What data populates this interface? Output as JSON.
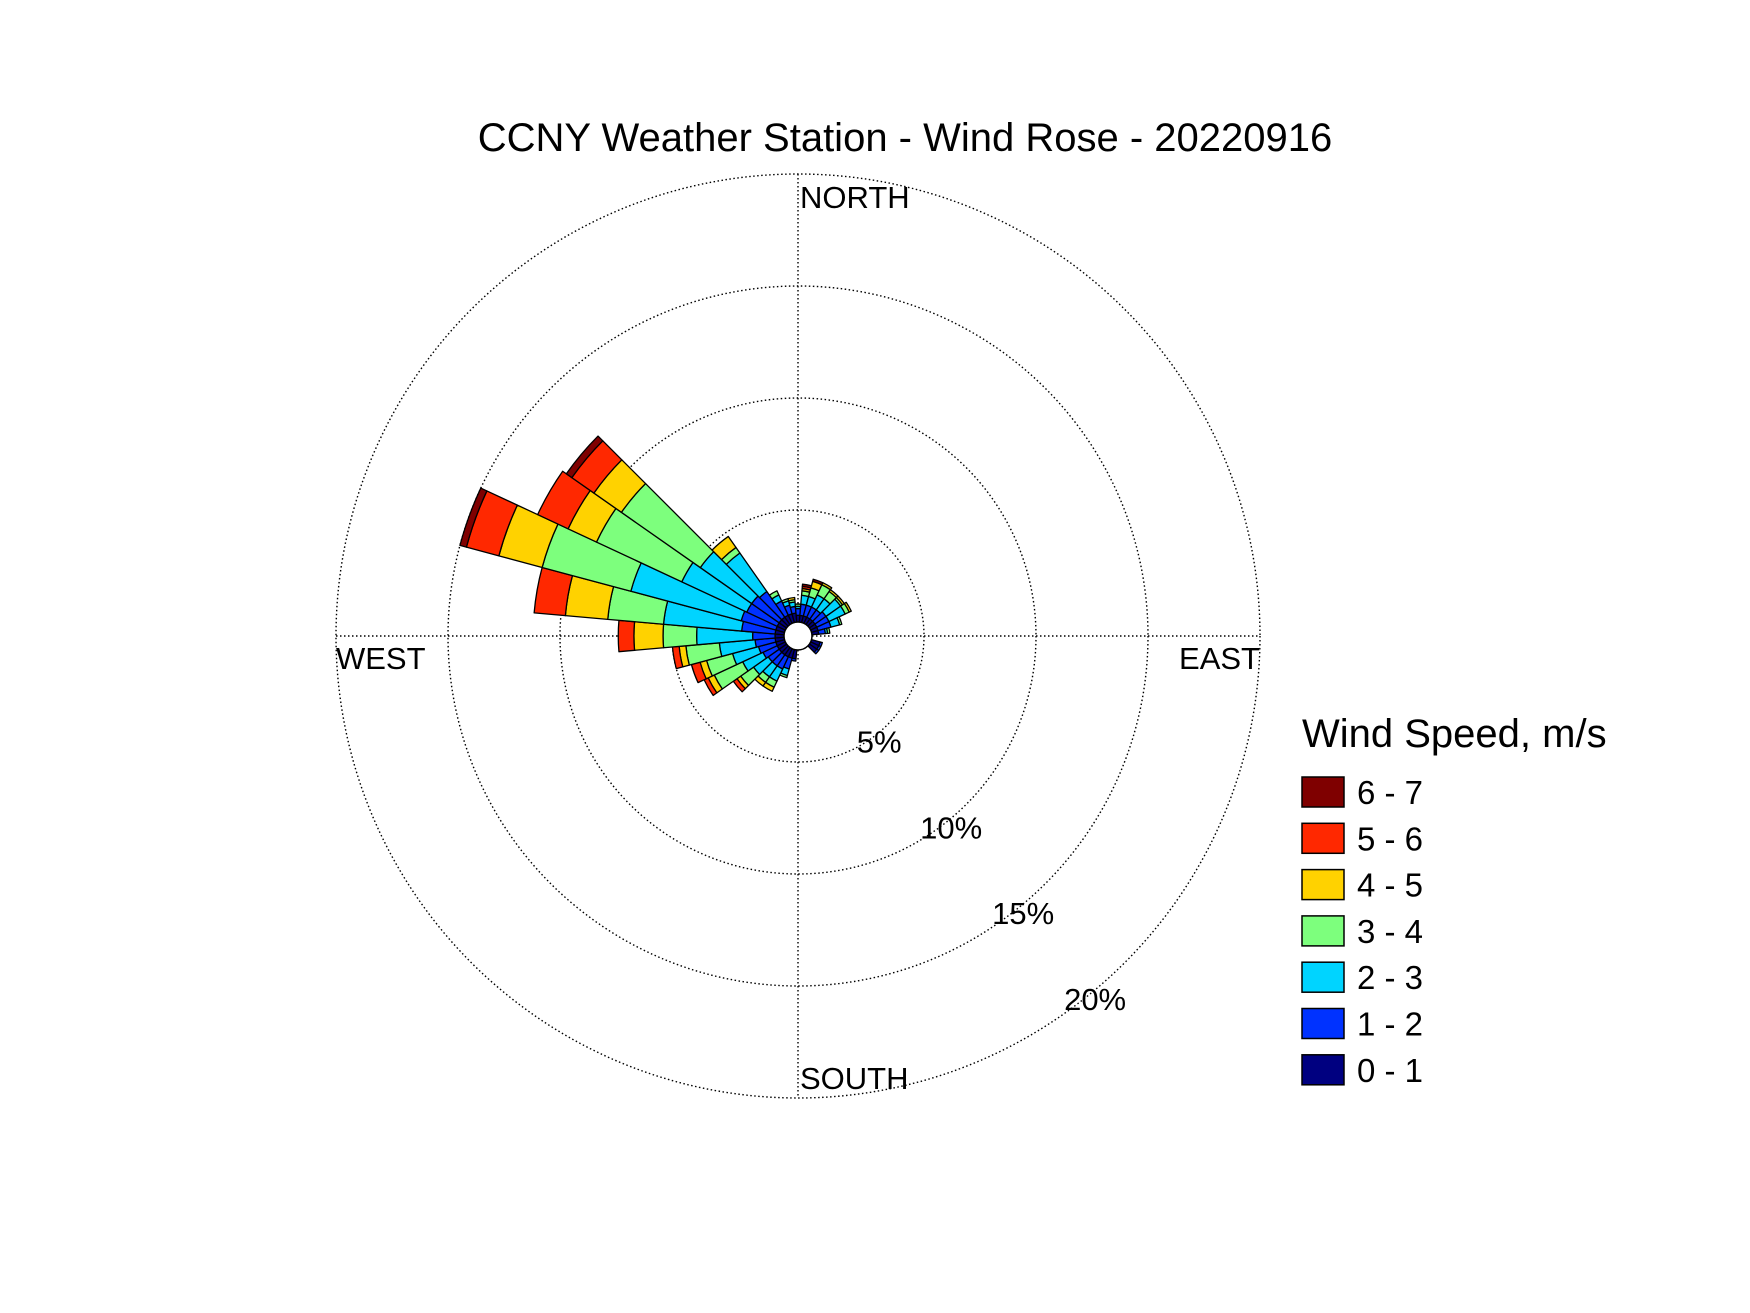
{
  "chart_data": {
    "type": "wind-rose",
    "title": "CCNY Weather Station - Wind Rose - 20220916",
    "direction_labels": {
      "north": "NORTH",
      "east": "EAST",
      "south": "SOUTH",
      "west": "WEST"
    },
    "radial_ticks": [
      {
        "value": 5,
        "label": "5%"
      },
      {
        "value": 10,
        "label": "10%"
      },
      {
        "value": 15,
        "label": "15%"
      },
      {
        "value": 20,
        "label": "20%"
      }
    ],
    "radial_max": 20,
    "legend": {
      "title": "Wind Speed, m/s",
      "bins": [
        {
          "label": "6 - 7",
          "color": "#7f0000"
        },
        {
          "label": "5 - 6",
          "color": "#ff2800"
        },
        {
          "label": "4 - 5",
          "color": "#ffd200"
        },
        {
          "label": "3 - 4",
          "color": "#7dff7d"
        },
        {
          "label": "2 - 3",
          "color": "#00d4ff"
        },
        {
          "label": "1 - 2",
          "color": "#0032ff"
        },
        {
          "label": "0 - 1",
          "color": "#000080"
        }
      ]
    },
    "speed_bins": [
      "0 - 1",
      "1 - 2",
      "2 - 3",
      "3 - 4",
      "4 - 5",
      "5 - 6",
      "6 - 7"
    ],
    "sector_width_deg": 10,
    "sectors": [
      {
        "direction_deg": 10,
        "values": [
          0.3,
          0.5,
          0.4,
          0.2,
          0.1,
          0.1,
          0.1
        ]
      },
      {
        "direction_deg": 20,
        "values": [
          0.3,
          0.5,
          0.4,
          0.4,
          0.3,
          0.0,
          0.1
        ]
      },
      {
        "direction_deg": 30,
        "values": [
          0.3,
          0.5,
          0.6,
          0.5,
          0.1,
          0.0,
          0.0
        ]
      },
      {
        "direction_deg": 40,
        "values": [
          0.3,
          0.5,
          0.6,
          0.4,
          0.1,
          0.0,
          0.0
        ]
      },
      {
        "direction_deg": 50,
        "values": [
          0.3,
          0.6,
          0.8,
          0.1,
          0.1,
          0.0,
          0.0
        ]
      },
      {
        "direction_deg": 60,
        "values": [
          0.3,
          0.6,
          0.8,
          0.2,
          0.1,
          0.0,
          0.0
        ]
      },
      {
        "direction_deg": 70,
        "values": [
          0.3,
          0.6,
          0.4,
          0.1,
          0.0,
          0.0,
          0.0
        ]
      },
      {
        "direction_deg": 80,
        "values": [
          0.3,
          0.3,
          0.1,
          0.1,
          0.0,
          0.0,
          0.0
        ]
      },
      {
        "direction_deg": 110,
        "values": [
          0.4,
          0.1,
          0.0,
          0.0,
          0.0,
          0.0,
          0.0
        ]
      },
      {
        "direction_deg": 120,
        "values": [
          0.4,
          0.1,
          0.0,
          0.0,
          0.0,
          0.0,
          0.0
        ]
      },
      {
        "direction_deg": 130,
        "values": [
          0.4,
          0.1,
          0.0,
          0.0,
          0.0,
          0.0,
          0.0
        ]
      },
      {
        "direction_deg": 190,
        "values": [
          0.4,
          0.1,
          0.0,
          0.0,
          0.0,
          0.0,
          0.0
        ]
      },
      {
        "direction_deg": 200,
        "values": [
          0.4,
          0.5,
          0.3,
          0.1,
          0.0,
          0.0,
          0.0
        ]
      },
      {
        "direction_deg": 210,
        "values": [
          0.4,
          0.6,
          0.6,
          0.3,
          0.2,
          0.0,
          0.0
        ]
      },
      {
        "direction_deg": 220,
        "values": [
          0.4,
          0.6,
          0.6,
          0.3,
          0.2,
          0.0,
          0.0
        ]
      },
      {
        "direction_deg": 230,
        "values": [
          0.4,
          0.6,
          0.8,
          0.7,
          0.2,
          0.2,
          0.0
        ]
      },
      {
        "direction_deg": 240,
        "values": [
          0.4,
          0.7,
          1.0,
          1.4,
          0.3,
          0.2,
          0.0
        ]
      },
      {
        "direction_deg": 250,
        "values": [
          0.4,
          0.8,
          1.2,
          1.2,
          0.3,
          0.4,
          0.0
        ]
      },
      {
        "direction_deg": 260,
        "values": [
          0.4,
          0.9,
          1.6,
          1.5,
          0.3,
          0.3,
          0.0
        ]
      },
      {
        "direction_deg": 270,
        "values": [
          0.4,
          1.0,
          2.5,
          1.5,
          1.3,
          0.7,
          0.0
        ]
      },
      {
        "direction_deg": 280,
        "values": [
          0.4,
          1.5,
          3.5,
          2.5,
          1.9,
          1.4,
          0.0
        ]
      },
      {
        "direction_deg": 290,
        "values": [
          0.4,
          1.6,
          5.1,
          4.1,
          2.0,
          1.5,
          0.3
        ]
      },
      {
        "direction_deg": 300,
        "values": [
          0.4,
          1.5,
          3.2,
          4.2,
          1.4,
          1.5,
          0.0
        ]
      },
      {
        "direction_deg": 310,
        "values": [
          0.4,
          1.5,
          2.8,
          4.3,
          1.5,
          1.2,
          0.3
        ]
      },
      {
        "direction_deg": 320,
        "values": [
          0.4,
          1.4,
          2.1,
          0.3,
          0.6,
          0.0,
          0.0
        ]
      },
      {
        "direction_deg": 330,
        "values": [
          0.4,
          0.7,
          0.3,
          0.2,
          0.0,
          0.0,
          0.0
        ]
      },
      {
        "direction_deg": 340,
        "values": [
          0.4,
          0.4,
          0.2,
          0.1,
          0.0,
          0.0,
          0.0
        ]
      },
      {
        "direction_deg": 350,
        "values": [
          0.4,
          0.3,
          0.2,
          0.1,
          0.1,
          0.0,
          0.0
        ]
      },
      {
        "direction_deg": 360,
        "values": [
          0.3,
          0.3,
          0.1,
          0.1,
          0.0,
          0.0,
          0.0
        ]
      }
    ],
    "grid": true
  }
}
